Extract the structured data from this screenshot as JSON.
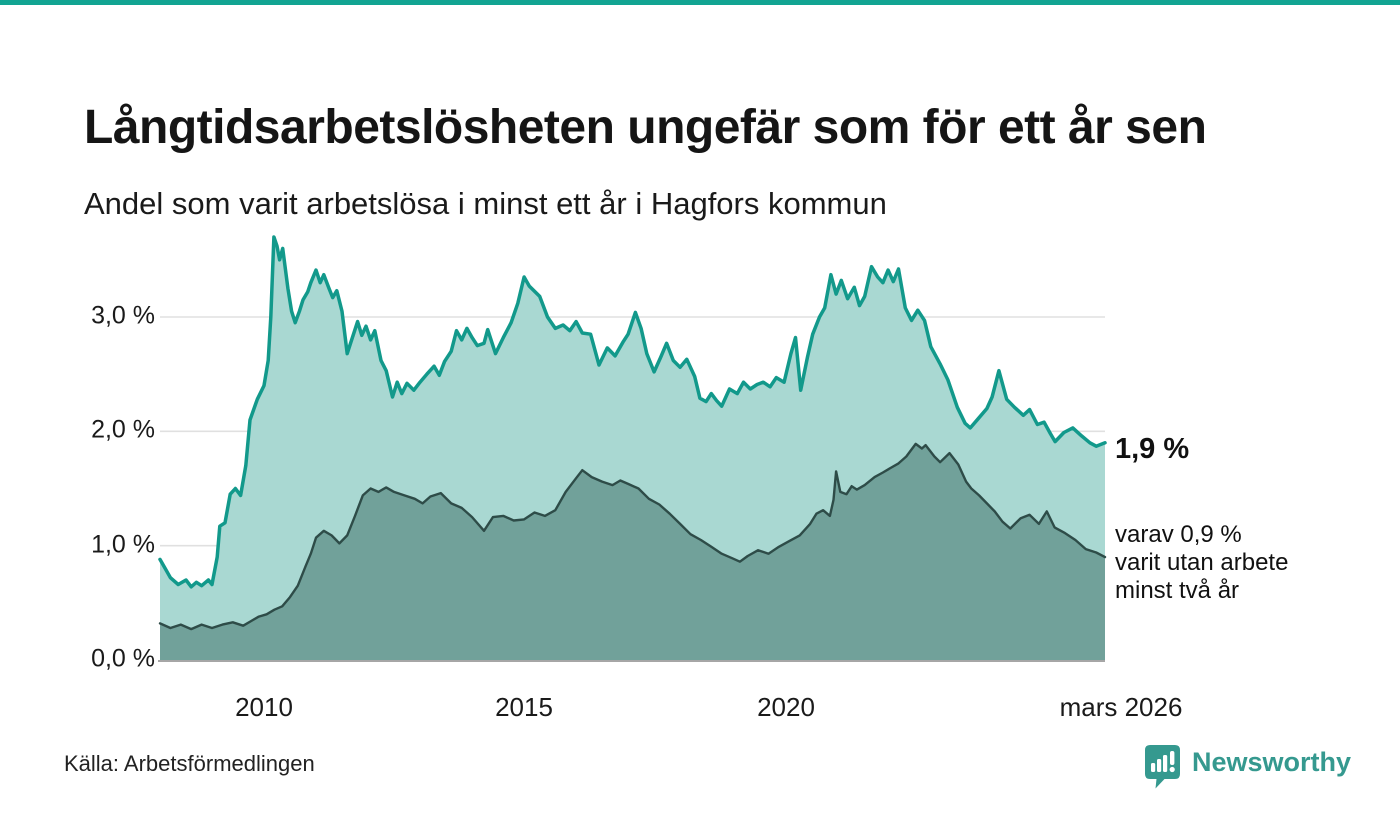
{
  "accent": {
    "top_bar_color": "#12a492"
  },
  "header": {
    "title": "Långtidsarbetslösheten ungefär som för ett år sen",
    "subtitle": "Andel som varit arbetslösa i minst ett år i Hagfors kommun"
  },
  "axis": {
    "y_ticks": [
      "0,0 %",
      "1,0 %",
      "2,0 %",
      "3,0 %"
    ],
    "x_ticks": [
      "2010",
      "2015",
      "2020",
      "mars 2026"
    ]
  },
  "annotations": {
    "big_value": "1,9 %",
    "small_line1": "varav 0,9 %",
    "small_line2": "varit utan arbete",
    "small_line3": "minst två år"
  },
  "footer": {
    "source": "Källa: Arbetsförmedlingen",
    "brand_name": "Newsworthy"
  },
  "colors": {
    "series1_line": "#12998b",
    "series1_fill": "#a9d8d2",
    "series2_line": "#2e4c48",
    "series2_fill": "#71a19a",
    "gridline": "#e0e0e0",
    "baseline": "#a6a6a6",
    "brand_teal": "#35998f"
  },
  "chart_data": {
    "type": "area",
    "title": "Långtidsarbetslösheten ungefär som för ett år sen",
    "subtitle": "Andel som varit arbetslösa i minst ett år i Hagfors kommun",
    "unit": "percent",
    "x_unit": "decimal_year",
    "x_range": [
      2008.0,
      2026.17
    ],
    "ylim": [
      0,
      4.0
    ],
    "y_gridlines": [
      1.0,
      2.0,
      3.0
    ],
    "grid": true,
    "legend_position": "right-annotations",
    "series": [
      {
        "name": "Arbetslösa minst ett år",
        "last_label": "1,9 %",
        "last_value": 1.9,
        "points": [
          [
            2008.0,
            0.88
          ],
          [
            2008.1,
            0.8
          ],
          [
            2008.2,
            0.72
          ],
          [
            2008.35,
            0.66
          ],
          [
            2008.5,
            0.7
          ],
          [
            2008.6,
            0.64
          ],
          [
            2008.7,
            0.68
          ],
          [
            2008.8,
            0.65
          ],
          [
            2008.93,
            0.7
          ],
          [
            2009.0,
            0.66
          ],
          [
            2009.1,
            0.9
          ],
          [
            2009.15,
            1.17
          ],
          [
            2009.25,
            1.2
          ],
          [
            2009.35,
            1.45
          ],
          [
            2009.45,
            1.5
          ],
          [
            2009.55,
            1.44
          ],
          [
            2009.65,
            1.7
          ],
          [
            2009.73,
            2.1
          ],
          [
            2009.87,
            2.28
          ],
          [
            2010.0,
            2.4
          ],
          [
            2010.08,
            2.62
          ],
          [
            2010.13,
            3.0
          ],
          [
            2010.19,
            3.7
          ],
          [
            2010.25,
            3.62
          ],
          [
            2010.3,
            3.5
          ],
          [
            2010.36,
            3.6
          ],
          [
            2010.46,
            3.25
          ],
          [
            2010.53,
            3.05
          ],
          [
            2010.6,
            2.95
          ],
          [
            2010.68,
            3.05
          ],
          [
            2010.75,
            3.15
          ],
          [
            2010.84,
            3.22
          ],
          [
            2010.9,
            3.3
          ],
          [
            2011.0,
            3.41
          ],
          [
            2011.08,
            3.3
          ],
          [
            2011.15,
            3.37
          ],
          [
            2011.25,
            3.25
          ],
          [
            2011.32,
            3.17
          ],
          [
            2011.4,
            3.23
          ],
          [
            2011.5,
            3.05
          ],
          [
            2011.6,
            2.68
          ],
          [
            2011.7,
            2.82
          ],
          [
            2011.8,
            2.96
          ],
          [
            2011.88,
            2.84
          ],
          [
            2011.96,
            2.92
          ],
          [
            2012.05,
            2.8
          ],
          [
            2012.13,
            2.88
          ],
          [
            2012.25,
            2.62
          ],
          [
            2012.35,
            2.53
          ],
          [
            2012.47,
            2.3
          ],
          [
            2012.56,
            2.43
          ],
          [
            2012.65,
            2.33
          ],
          [
            2012.75,
            2.42
          ],
          [
            2012.88,
            2.36
          ],
          [
            2013.0,
            2.43
          ],
          [
            2013.13,
            2.5
          ],
          [
            2013.27,
            2.57
          ],
          [
            2013.37,
            2.49
          ],
          [
            2013.47,
            2.61
          ],
          [
            2013.6,
            2.7
          ],
          [
            2013.7,
            2.88
          ],
          [
            2013.8,
            2.8
          ],
          [
            2013.9,
            2.9
          ],
          [
            2014.0,
            2.82
          ],
          [
            2014.1,
            2.75
          ],
          [
            2014.23,
            2.77
          ],
          [
            2014.3,
            2.89
          ],
          [
            2014.45,
            2.68
          ],
          [
            2014.6,
            2.82
          ],
          [
            2014.75,
            2.95
          ],
          [
            2014.88,
            3.12
          ],
          [
            2015.0,
            3.35
          ],
          [
            2015.1,
            3.27
          ],
          [
            2015.3,
            3.18
          ],
          [
            2015.45,
            3.0
          ],
          [
            2015.6,
            2.9
          ],
          [
            2015.75,
            2.93
          ],
          [
            2015.88,
            2.88
          ],
          [
            2016.0,
            2.96
          ],
          [
            2016.12,
            2.86
          ],
          [
            2016.28,
            2.85
          ],
          [
            2016.44,
            2.58
          ],
          [
            2016.6,
            2.73
          ],
          [
            2016.75,
            2.66
          ],
          [
            2016.9,
            2.78
          ],
          [
            2017.0,
            2.85
          ],
          [
            2017.14,
            3.04
          ],
          [
            2017.25,
            2.9
          ],
          [
            2017.36,
            2.68
          ],
          [
            2017.5,
            2.52
          ],
          [
            2017.63,
            2.65
          ],
          [
            2017.74,
            2.77
          ],
          [
            2017.87,
            2.62
          ],
          [
            2018.0,
            2.56
          ],
          [
            2018.13,
            2.63
          ],
          [
            2018.28,
            2.48
          ],
          [
            2018.38,
            2.29
          ],
          [
            2018.5,
            2.26
          ],
          [
            2018.6,
            2.33
          ],
          [
            2018.7,
            2.27
          ],
          [
            2018.8,
            2.22
          ],
          [
            2018.95,
            2.37
          ],
          [
            2019.1,
            2.33
          ],
          [
            2019.22,
            2.43
          ],
          [
            2019.35,
            2.37
          ],
          [
            2019.48,
            2.41
          ],
          [
            2019.6,
            2.43
          ],
          [
            2019.73,
            2.39
          ],
          [
            2019.85,
            2.47
          ],
          [
            2020.0,
            2.43
          ],
          [
            2020.13,
            2.68
          ],
          [
            2020.22,
            2.82
          ],
          [
            2020.32,
            2.36
          ],
          [
            2020.45,
            2.65
          ],
          [
            2020.55,
            2.85
          ],
          [
            2020.68,
            3.0
          ],
          [
            2020.78,
            3.08
          ],
          [
            2020.9,
            3.37
          ],
          [
            2021.0,
            3.2
          ],
          [
            2021.1,
            3.32
          ],
          [
            2021.22,
            3.16
          ],
          [
            2021.35,
            3.26
          ],
          [
            2021.45,
            3.1
          ],
          [
            2021.55,
            3.18
          ],
          [
            2021.68,
            3.44
          ],
          [
            2021.8,
            3.35
          ],
          [
            2021.9,
            3.3
          ],
          [
            2022.0,
            3.41
          ],
          [
            2022.1,
            3.31
          ],
          [
            2022.2,
            3.42
          ],
          [
            2022.33,
            3.08
          ],
          [
            2022.45,
            2.97
          ],
          [
            2022.57,
            3.06
          ],
          [
            2022.7,
            2.97
          ],
          [
            2022.82,
            2.74
          ],
          [
            2023.0,
            2.59
          ],
          [
            2023.15,
            2.45
          ],
          [
            2023.33,
            2.21
          ],
          [
            2023.48,
            2.07
          ],
          [
            2023.58,
            2.03
          ],
          [
            2023.73,
            2.11
          ],
          [
            2023.9,
            2.2
          ],
          [
            2024.0,
            2.3
          ],
          [
            2024.13,
            2.53
          ],
          [
            2024.28,
            2.28
          ],
          [
            2024.43,
            2.21
          ],
          [
            2024.6,
            2.14
          ],
          [
            2024.72,
            2.19
          ],
          [
            2024.87,
            2.06
          ],
          [
            2025.0,
            2.08
          ],
          [
            2025.12,
            1.98
          ],
          [
            2025.21,
            1.91
          ],
          [
            2025.38,
            1.99
          ],
          [
            2025.55,
            2.03
          ],
          [
            2025.72,
            1.96
          ],
          [
            2025.88,
            1.9
          ],
          [
            2026.0,
            1.87
          ],
          [
            2026.17,
            1.9
          ]
        ]
      },
      {
        "name": "varav utan arbete minst två år",
        "last_label": "0,9 %",
        "last_value": 0.9,
        "points": [
          [
            2008.0,
            0.32
          ],
          [
            2008.2,
            0.28
          ],
          [
            2008.4,
            0.31
          ],
          [
            2008.6,
            0.27
          ],
          [
            2008.8,
            0.31
          ],
          [
            2009.0,
            0.28
          ],
          [
            2009.2,
            0.31
          ],
          [
            2009.4,
            0.33
          ],
          [
            2009.6,
            0.3
          ],
          [
            2009.75,
            0.34
          ],
          [
            2009.9,
            0.38
          ],
          [
            2010.05,
            0.4
          ],
          [
            2010.2,
            0.44
          ],
          [
            2010.35,
            0.47
          ],
          [
            2010.5,
            0.55
          ],
          [
            2010.65,
            0.65
          ],
          [
            2010.8,
            0.82
          ],
          [
            2010.9,
            0.93
          ],
          [
            2011.0,
            1.07
          ],
          [
            2011.15,
            1.13
          ],
          [
            2011.3,
            1.09
          ],
          [
            2011.45,
            1.02
          ],
          [
            2011.6,
            1.09
          ],
          [
            2011.75,
            1.26
          ],
          [
            2011.9,
            1.44
          ],
          [
            2012.05,
            1.5
          ],
          [
            2012.2,
            1.47
          ],
          [
            2012.35,
            1.51
          ],
          [
            2012.5,
            1.47
          ],
          [
            2012.7,
            1.44
          ],
          [
            2012.9,
            1.41
          ],
          [
            2013.05,
            1.37
          ],
          [
            2013.2,
            1.43
          ],
          [
            2013.4,
            1.46
          ],
          [
            2013.6,
            1.37
          ],
          [
            2013.8,
            1.33
          ],
          [
            2014.0,
            1.25
          ],
          [
            2014.23,
            1.13
          ],
          [
            2014.4,
            1.25
          ],
          [
            2014.6,
            1.26
          ],
          [
            2014.8,
            1.22
          ],
          [
            2015.0,
            1.23
          ],
          [
            2015.2,
            1.29
          ],
          [
            2015.4,
            1.26
          ],
          [
            2015.6,
            1.31
          ],
          [
            2015.8,
            1.47
          ],
          [
            2016.0,
            1.59
          ],
          [
            2016.12,
            1.66
          ],
          [
            2016.3,
            1.6
          ],
          [
            2016.5,
            1.56
          ],
          [
            2016.7,
            1.53
          ],
          [
            2016.85,
            1.57
          ],
          [
            2017.0,
            1.54
          ],
          [
            2017.2,
            1.5
          ],
          [
            2017.4,
            1.41
          ],
          [
            2017.6,
            1.36
          ],
          [
            2017.8,
            1.28
          ],
          [
            2018.0,
            1.19
          ],
          [
            2018.2,
            1.1
          ],
          [
            2018.4,
            1.05
          ],
          [
            2018.6,
            0.99
          ],
          [
            2018.8,
            0.93
          ],
          [
            2019.0,
            0.89
          ],
          [
            2019.15,
            0.86
          ],
          [
            2019.3,
            0.91
          ],
          [
            2019.5,
            0.96
          ],
          [
            2019.7,
            0.93
          ],
          [
            2019.9,
            0.99
          ],
          [
            2020.1,
            1.04
          ],
          [
            2020.3,
            1.09
          ],
          [
            2020.5,
            1.19
          ],
          [
            2020.62,
            1.28
          ],
          [
            2020.75,
            1.31
          ],
          [
            2020.88,
            1.26
          ],
          [
            2020.95,
            1.4
          ],
          [
            2021.0,
            1.65
          ],
          [
            2021.08,
            1.47
          ],
          [
            2021.2,
            1.45
          ],
          [
            2021.3,
            1.52
          ],
          [
            2021.4,
            1.49
          ],
          [
            2021.55,
            1.53
          ],
          [
            2021.74,
            1.6
          ],
          [
            2021.9,
            1.64
          ],
          [
            2022.05,
            1.68
          ],
          [
            2022.2,
            1.72
          ],
          [
            2022.35,
            1.78
          ],
          [
            2022.53,
            1.89
          ],
          [
            2022.65,
            1.85
          ],
          [
            2022.72,
            1.88
          ],
          [
            2022.89,
            1.78
          ],
          [
            2023.0,
            1.73
          ],
          [
            2023.18,
            1.81
          ],
          [
            2023.35,
            1.71
          ],
          [
            2023.5,
            1.56
          ],
          [
            2023.6,
            1.5
          ],
          [
            2023.75,
            1.44
          ],
          [
            2023.9,
            1.37
          ],
          [
            2024.05,
            1.3
          ],
          [
            2024.2,
            1.21
          ],
          [
            2024.35,
            1.15
          ],
          [
            2024.55,
            1.24
          ],
          [
            2024.72,
            1.27
          ],
          [
            2024.9,
            1.19
          ],
          [
            2025.05,
            1.3
          ],
          [
            2025.2,
            1.16
          ],
          [
            2025.4,
            1.11
          ],
          [
            2025.6,
            1.05
          ],
          [
            2025.8,
            0.97
          ],
          [
            2026.0,
            0.94
          ],
          [
            2026.17,
            0.9
          ]
        ]
      }
    ]
  }
}
